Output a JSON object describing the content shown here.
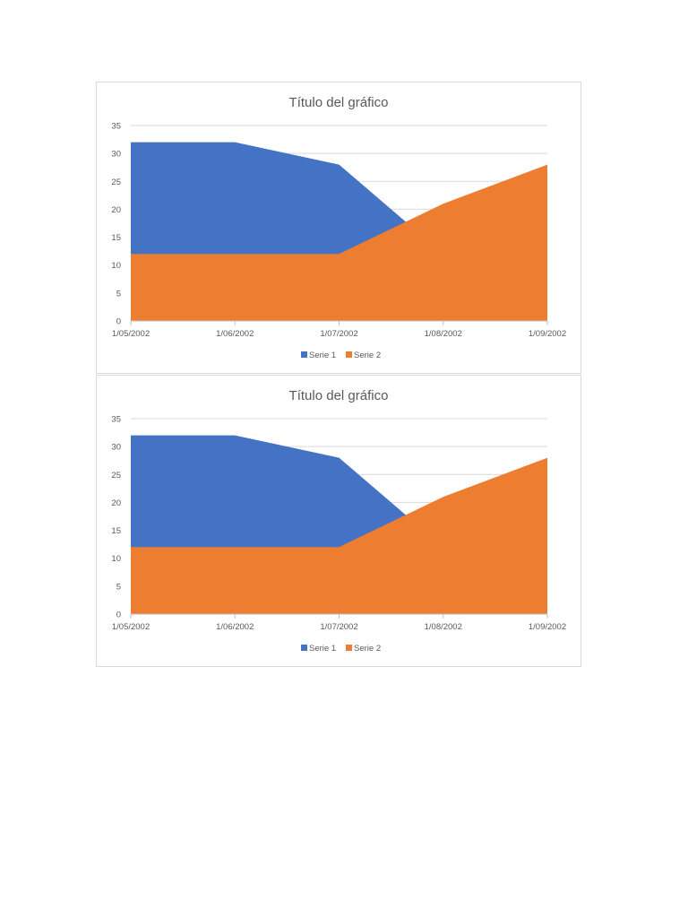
{
  "chart_data": [
    {
      "type": "area",
      "title": "Título del gráfico",
      "xlabel": "",
      "ylabel": "",
      "x": [
        "1/05/2002",
        "1/06/2002",
        "1/07/2002",
        "1/08/2002",
        "1/09/2002"
      ],
      "ylim": [
        0,
        35
      ],
      "yticks": [
        0,
        5,
        10,
        15,
        20,
        25,
        30,
        35
      ],
      "grid": true,
      "legend": "bottom",
      "series": [
        {
          "name": "Serie 1",
          "values": [
            32,
            32,
            28,
            12,
            15
          ],
          "color": "#4472C4"
        },
        {
          "name": "Serie 2",
          "values": [
            12,
            12,
            12,
            21,
            28
          ],
          "color": "#ED7D31"
        }
      ]
    },
    {
      "type": "area",
      "title": "Título del gráfico",
      "xlabel": "",
      "ylabel": "",
      "x": [
        "1/05/2002",
        "1/06/2002",
        "1/07/2002",
        "1/08/2002",
        "1/09/2002"
      ],
      "ylim": [
        0,
        35
      ],
      "yticks": [
        0,
        5,
        10,
        15,
        20,
        25,
        30,
        35
      ],
      "grid": true,
      "legend": "bottom",
      "series": [
        {
          "name": "Serie 1",
          "values": [
            32,
            32,
            28,
            12,
            15
          ],
          "color": "#4472C4"
        },
        {
          "name": "Serie 2",
          "values": [
            12,
            12,
            12,
            21,
            28
          ],
          "color": "#ED7D31"
        }
      ]
    }
  ]
}
